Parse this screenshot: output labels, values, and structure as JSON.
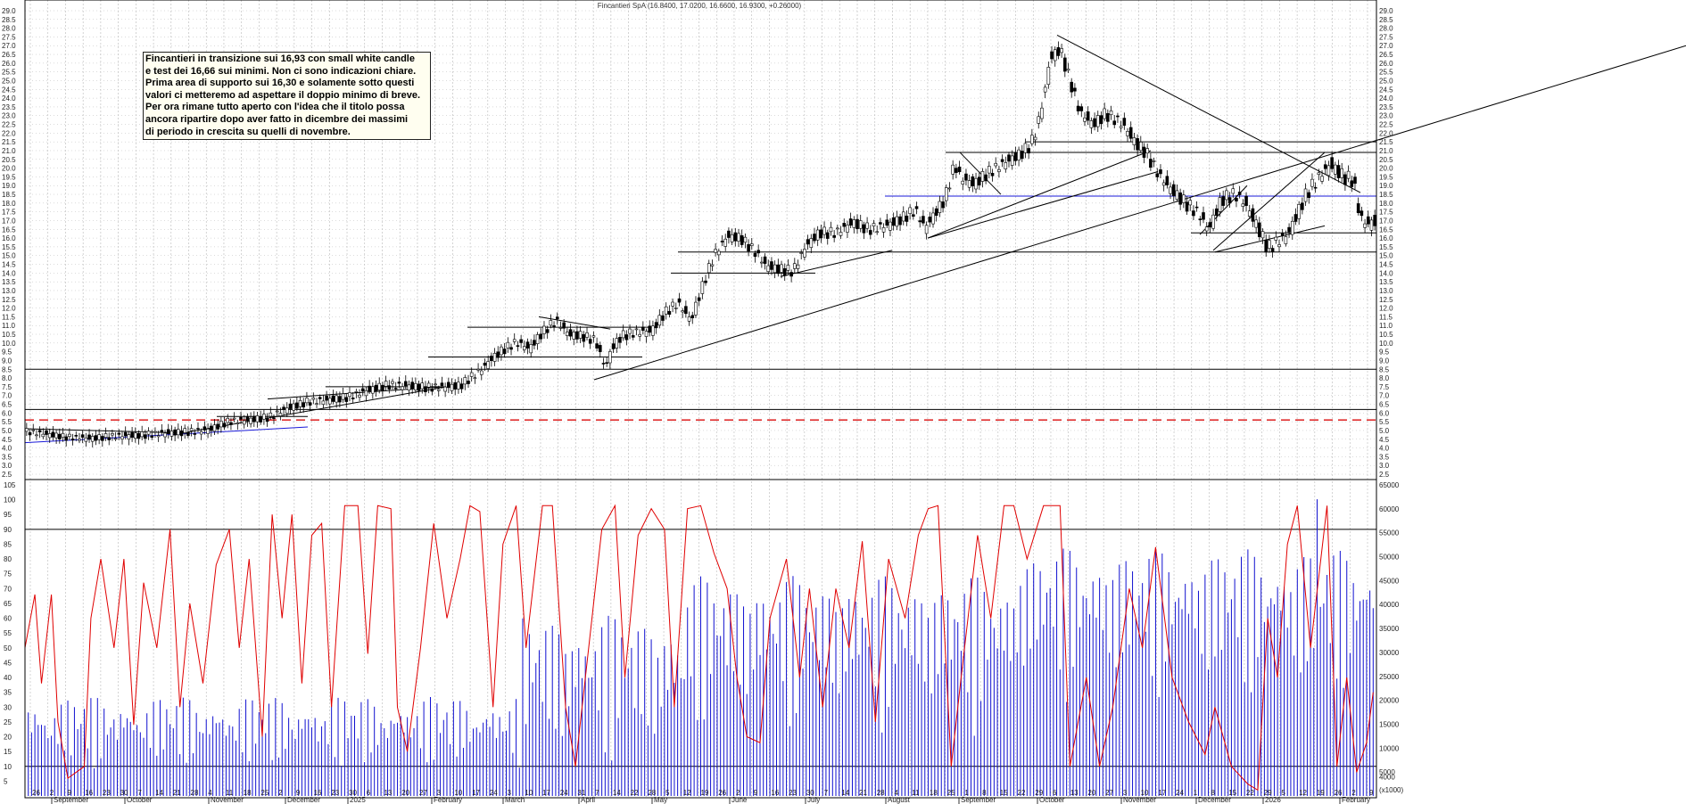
{
  "chart_data": {
    "type": "candlestick",
    "title": "Fincantieri SpA (16.8400, 17.0200, 16.6600, 16.9300, +0.26000)",
    "price_axis": {
      "ylim": [
        2.5,
        29.0
      ],
      "ticks": [
        2.5,
        3.0,
        3.5,
        4.0,
        4.5,
        5.0,
        5.5,
        6.0,
        6.5,
        7.0,
        7.5,
        8.0,
        8.5,
        9.0,
        9.5,
        10.0,
        10.5,
        11.0,
        11.5,
        12.0,
        12.5,
        13.0,
        13.5,
        14.0,
        14.5,
        15.0,
        15.5,
        16.0,
        16.5,
        17.0,
        17.5,
        18.0,
        18.5,
        19.0,
        19.5,
        20.0,
        20.5,
        21.0,
        21.5,
        22.0,
        22.5,
        23.0,
        23.5,
        24.0,
        24.5,
        25.0,
        25.5,
        26.0,
        26.5,
        27.0,
        27.5,
        28.0,
        28.5,
        29.0
      ]
    },
    "oscillator_axis": {
      "ylim": [
        0,
        105
      ],
      "ticks": [
        5,
        10,
        15,
        20,
        25,
        30,
        35,
        40,
        45,
        50,
        55,
        60,
        65,
        70,
        75,
        80,
        85,
        90,
        95,
        100,
        105
      ],
      "levels": [
        10,
        90
      ]
    },
    "volume_axis": {
      "ylim": [
        0,
        65000
      ],
      "ticks": [
        "4000",
        "5000",
        "10000",
        "15000",
        "20000",
        "25000",
        "30000",
        "35000",
        "40000",
        "45000",
        "50000",
        "55000",
        "60000",
        "65000"
      ],
      "unit_label": "(x1000)"
    },
    "x_axis": {
      "day_labels": [
        "26",
        "2",
        "9",
        "16",
        "23",
        "30",
        "7",
        "14",
        "21",
        "28",
        "4",
        "11",
        "18",
        "25",
        "2",
        "9",
        "16",
        "23",
        "30",
        "6",
        "13",
        "20",
        "27",
        "3",
        "10",
        "17",
        "24",
        "3",
        "10",
        "17",
        "24",
        "31",
        "7",
        "14",
        "22",
        "28",
        "5",
        "12",
        "19",
        "26",
        "2",
        "9",
        "16",
        "23",
        "30",
        "7",
        "14",
        "21",
        "28",
        "4",
        "11",
        "18",
        "25",
        "1",
        "8",
        "15",
        "22",
        "29",
        "6",
        "13",
        "20",
        "27",
        "3",
        "10",
        "17",
        "24",
        "1",
        "8",
        "15",
        "22",
        "29",
        "5",
        "12",
        "19",
        "26",
        "2",
        "9"
      ],
      "month_labels": [
        "September",
        "October",
        "November",
        "December",
        "2025",
        "February",
        "March",
        "April",
        "May",
        "June",
        "July",
        "August",
        "September",
        "October",
        "November",
        "December",
        "2026",
        "February"
      ]
    },
    "close_path": [
      [
        0,
        4.95
      ],
      [
        12,
        4.8
      ],
      [
        25,
        4.62
      ],
      [
        40,
        4.55
      ],
      [
        55,
        4.68
      ],
      [
        70,
        4.72
      ],
      [
        85,
        4.85
      ],
      [
        100,
        4.92
      ],
      [
        112,
        5.05
      ],
      [
        118,
        5.3
      ],
      [
        124,
        5.52
      ],
      [
        136,
        5.6
      ],
      [
        148,
        5.75
      ],
      [
        160,
        6.3
      ],
      [
        172,
        6.65
      ],
      [
        184,
        6.75
      ],
      [
        196,
        6.9
      ],
      [
        208,
        7.3
      ],
      [
        220,
        7.6
      ],
      [
        232,
        7.55
      ],
      [
        244,
        7.45
      ],
      [
        256,
        7.5
      ],
      [
        264,
        7.55
      ],
      [
        270,
        8.0
      ],
      [
        277,
        8.5
      ],
      [
        283,
        9.1
      ],
      [
        290,
        9.6
      ],
      [
        298,
        10.05
      ],
      [
        306,
        9.7
      ],
      [
        314,
        10.6
      ],
      [
        322,
        11.3
      ],
      [
        330,
        10.5
      ],
      [
        338,
        10.4
      ],
      [
        346,
        10.15
      ],
      [
        352,
        8.6
      ],
      [
        356,
        9.7
      ],
      [
        362,
        10.4
      ],
      [
        370,
        10.6
      ],
      [
        380,
        10.7
      ],
      [
        388,
        11.7
      ],
      [
        396,
        12.3
      ],
      [
        404,
        11.3
      ],
      [
        412,
        13.5
      ],
      [
        418,
        15.0
      ],
      [
        426,
        16.1
      ],
      [
        434,
        16.0
      ],
      [
        442,
        15.3
      ],
      [
        450,
        14.4
      ],
      [
        458,
        14.2
      ],
      [
        466,
        14.1
      ],
      [
        474,
        15.6
      ],
      [
        482,
        16.3
      ],
      [
        492,
        16.3
      ],
      [
        502,
        16.9
      ],
      [
        512,
        16.5
      ],
      [
        522,
        16.7
      ],
      [
        532,
        17.1
      ],
      [
        540,
        17.6
      ],
      [
        546,
        16.6
      ],
      [
        552,
        17.4
      ],
      [
        558,
        18.2
      ],
      [
        564,
        20.2
      ],
      [
        568,
        19.4
      ],
      [
        576,
        19.1
      ],
      [
        584,
        19.7
      ],
      [
        594,
        20.3
      ],
      [
        604,
        20.8
      ],
      [
        610,
        21.3
      ],
      [
        614,
        22.3
      ],
      [
        618,
        24.0
      ],
      [
        622,
        26.3
      ],
      [
        628,
        26.8
      ],
      [
        634,
        25.0
      ],
      [
        640,
        23.2
      ],
      [
        648,
        22.5
      ],
      [
        656,
        23.1
      ],
      [
        666,
        22.5
      ],
      [
        674,
        21.4
      ],
      [
        680,
        20.9
      ],
      [
        688,
        19.6
      ],
      [
        696,
        18.7
      ],
      [
        704,
        18.0
      ],
      [
        712,
        17.4
      ],
      [
        718,
        16.5
      ],
      [
        726,
        18.2
      ],
      [
        734,
        18.5
      ],
      [
        740,
        18.0
      ],
      [
        748,
        16.6
      ],
      [
        754,
        15.4
      ],
      [
        760,
        15.8
      ],
      [
        766,
        16.2
      ],
      [
        772,
        17.4
      ],
      [
        778,
        18.6
      ],
      [
        786,
        19.6
      ],
      [
        792,
        20.2
      ],
      [
        800,
        19.5
      ],
      [
        806,
        19.3
      ],
      [
        810,
        17.2
      ],
      [
        814,
        16.8
      ],
      [
        818,
        16.93
      ]
    ],
    "oscillator_path": [
      [
        0,
        50
      ],
      [
        6,
        68
      ],
      [
        10,
        38
      ],
      [
        16,
        68
      ],
      [
        20,
        25
      ],
      [
        26,
        6
      ],
      [
        36,
        10
      ],
      [
        40,
        60
      ],
      [
        46,
        80
      ],
      [
        54,
        50
      ],
      [
        60,
        80
      ],
      [
        66,
        24
      ],
      [
        72,
        72
      ],
      [
        80,
        50
      ],
      [
        88,
        90
      ],
      [
        94,
        30
      ],
      [
        100,
        65
      ],
      [
        108,
        38
      ],
      [
        116,
        78
      ],
      [
        124,
        90
      ],
      [
        130,
        50
      ],
      [
        136,
        80
      ],
      [
        144,
        20
      ],
      [
        150,
        95
      ],
      [
        156,
        60
      ],
      [
        162,
        95
      ],
      [
        168,
        38
      ],
      [
        174,
        88
      ],
      [
        180,
        92
      ],
      [
        186,
        30
      ],
      [
        194,
        98
      ],
      [
        202,
        98
      ],
      [
        208,
        48
      ],
      [
        214,
        98
      ],
      [
        222,
        97
      ],
      [
        226,
        30
      ],
      [
        232,
        15
      ],
      [
        240,
        50
      ],
      [
        248,
        92
      ],
      [
        256,
        60
      ],
      [
        264,
        80
      ],
      [
        270,
        98
      ],
      [
        276,
        96
      ],
      [
        284,
        30
      ],
      [
        290,
        85
      ],
      [
        298,
        98
      ],
      [
        304,
        50
      ],
      [
        314,
        98
      ],
      [
        320,
        98
      ],
      [
        328,
        30
      ],
      [
        334,
        10
      ],
      [
        344,
        60
      ],
      [
        350,
        90
      ],
      [
        358,
        98
      ],
      [
        364,
        40
      ],
      [
        372,
        88
      ],
      [
        380,
        97
      ],
      [
        388,
        90
      ],
      [
        394,
        30
      ],
      [
        402,
        97
      ],
      [
        410,
        98
      ],
      [
        418,
        82
      ],
      [
        426,
        70
      ],
      [
        432,
        40
      ],
      [
        438,
        20
      ],
      [
        446,
        18
      ],
      [
        452,
        60
      ],
      [
        462,
        80
      ],
      [
        470,
        40
      ],
      [
        476,
        70
      ],
      [
        484,
        30
      ],
      [
        492,
        70
      ],
      [
        500,
        50
      ],
      [
        508,
        86
      ],
      [
        516,
        25
      ],
      [
        524,
        80
      ],
      [
        534,
        60
      ],
      [
        542,
        88
      ],
      [
        548,
        97
      ],
      [
        554,
        98
      ],
      [
        562,
        10
      ],
      [
        568,
        40
      ],
      [
        578,
        88
      ],
      [
        586,
        60
      ],
      [
        594,
        98
      ],
      [
        600,
        98
      ],
      [
        608,
        80
      ],
      [
        618,
        98
      ],
      [
        628,
        98
      ],
      [
        634,
        10
      ],
      [
        644,
        40
      ],
      [
        652,
        10
      ],
      [
        660,
        30
      ],
      [
        670,
        70
      ],
      [
        678,
        50
      ],
      [
        686,
        84
      ],
      [
        696,
        40
      ],
      [
        706,
        25
      ],
      [
        716,
        14
      ],
      [
        722,
        30
      ],
      [
        732,
        10
      ],
      [
        742,
        4
      ],
      [
        748,
        2
      ],
      [
        754,
        60
      ],
      [
        760,
        40
      ],
      [
        766,
        85
      ],
      [
        772,
        98
      ],
      [
        780,
        50
      ],
      [
        790,
        98
      ],
      [
        796,
        10
      ],
      [
        802,
        40
      ],
      [
        808,
        8
      ],
      [
        814,
        18
      ],
      [
        818,
        35
      ]
    ]
  },
  "annotation": {
    "text": "Fincantieri in transizione  sui 16,93 con small white candle\ne test dei 16,66 sui minimi. Non ci sono indicazioni chiare.\nPrima area di supporto sui 16,30 e solamente sotto questi\nvalori ci metteremo ad aspettare il doppio minimo di breve.\nPer ora rimane tutto aperto con l'idea che il titolo possa\nancora ripartire dopo aver fatto in dicembre dei massimi\ndi periodo in crescita su quelli di novembre."
  },
  "colors": {
    "candle": "#000000",
    "oscillator": "#e00000",
    "volume": "#1010d0",
    "support_blue": "#1a1ad8",
    "dashed_level": "#e03030",
    "grid": "#b8b8b8"
  }
}
